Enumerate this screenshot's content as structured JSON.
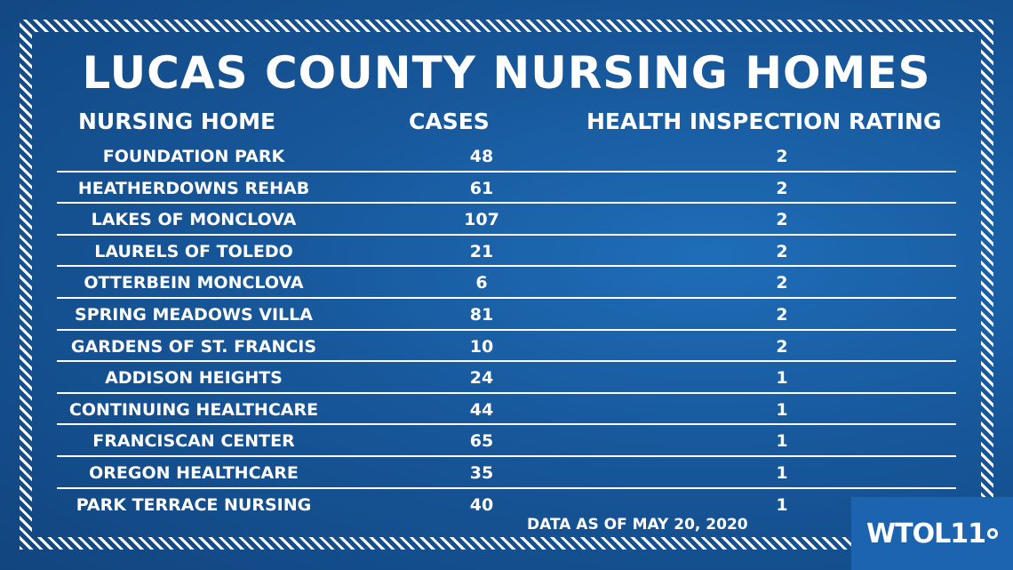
{
  "title": "LUCAS COUNTY NURSING HOMES",
  "headers": {
    "name": "NURSING HOME",
    "cases": "CASES",
    "rating": "HEALTH INSPECTION RATING"
  },
  "rows": [
    {
      "name": "FOUNDATION PARK",
      "cases": "48",
      "rating": "2"
    },
    {
      "name": "HEATHERDOWNS REHAB",
      "cases": "61",
      "rating": "2"
    },
    {
      "name": "LAKES OF MONCLOVA",
      "cases": "107",
      "rating": "2"
    },
    {
      "name": "LAURELS OF TOLEDO",
      "cases": "21",
      "rating": "2"
    },
    {
      "name": "OTTERBEIN MONCLOVA",
      "cases": "6",
      "rating": "2"
    },
    {
      "name": "SPRING MEADOWS VILLA",
      "cases": "81",
      "rating": "2"
    },
    {
      "name": "GARDENS OF ST. FRANCIS",
      "cases": "10",
      "rating": "2"
    },
    {
      "name": "ADDISON HEIGHTS",
      "cases": "24",
      "rating": "1"
    },
    {
      "name": "CONTINUING HEALTHCARE",
      "cases": "44",
      "rating": "1"
    },
    {
      "name": "FRANCISCAN CENTER",
      "cases": "65",
      "rating": "1"
    },
    {
      "name": "OREGON HEALTHCARE",
      "cases": "35",
      "rating": "1"
    },
    {
      "name": "PARK TERRACE NURSING",
      "cases": "40",
      "rating": "1"
    }
  ],
  "note": "DATA AS OF MAY 20, 2020",
  "logo": {
    "text": "WTOL11",
    "icon": "broadcast-dot-icon"
  },
  "colors": {
    "background": "#17579a",
    "background_dark": "#11457f",
    "text": "#ffffff",
    "logo_box": "#1c64b0"
  }
}
